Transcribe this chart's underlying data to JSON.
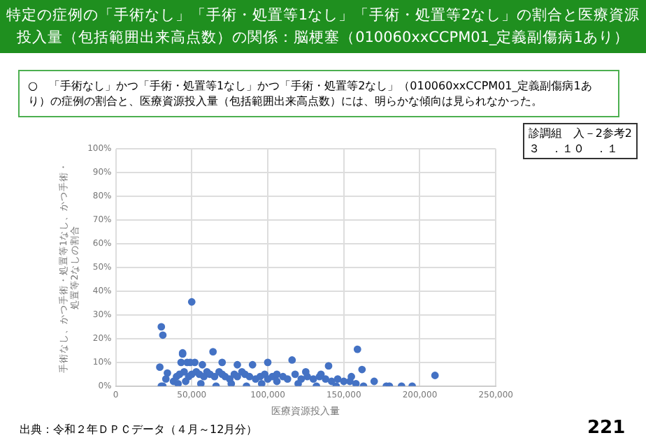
{
  "chart_data": {
    "type": "scatter",
    "title": "特定の症例の「手術なし」「手術・処置等1なし」「手術・処置等2なし」の割合と医療資源投入量（包括範囲出来高点数）の関係：脳梗塞（010060xxCCPM01_定義副傷病1あり）",
    "subtitle": "○　「手術なし」かつ「手術・処置等1なし」かつ「手術・処置等2なし」（010060xxCCPM01_定義副傷病1あり）の症例の割合と、医療資源投入量（包括範囲出来高点数）には、明らかな傾向は見られなかった。",
    "annotations": [
      "診調組　入－2参考2\n３　．１０　．１",
      "出典：令和２年ＤＰＣデータ（４月～12月分）",
      "221"
    ],
    "xlabel": "医療資源投入量",
    "ylabel": "手術なし、かつ手術・処置等1なし、かつ手術・処置等2なしの割合",
    "series": [
      {
        "color": "#4472c4",
        "x": [
          30000,
          31000,
          29000,
          30000,
          31000,
          33000,
          34000,
          50000,
          44000,
          44000,
          43000,
          47000,
          49000,
          52000,
          64000,
          116000,
          90000,
          159000,
          162000,
          210000,
          170000,
          178000,
          180000,
          188000,
          195000,
          140000,
          163000,
          155000,
          38000,
          40000,
          42000,
          45000,
          48000,
          50000,
          53000,
          55000,
          58000,
          60000,
          62000,
          65000,
          68000,
          70000,
          72000,
          75000,
          78000,
          80000,
          83000,
          85000,
          88000,
          92000,
          95000,
          98000,
          100000,
          103000,
          106000,
          110000,
          113000,
          118000,
          122000,
          126000,
          130000,
          134000,
          138000,
          142000,
          146000,
          150000,
          154000,
          158000,
          41000,
          46000,
          56000,
          66000,
          76000,
          86000,
          96000,
          106000,
          120000,
          132000,
          145000,
          70000,
          80000,
          57000,
          100000,
          125000,
          135000
        ],
        "values": [
          25,
          21.5,
          8,
          0,
          0,
          3,
          5.5,
          35.5,
          14,
          13.5,
          10,
          10,
          10,
          10,
          14.5,
          11,
          9,
          15.5,
          7,
          4.5,
          2,
          0,
          0,
          0,
          0,
          8.5,
          0,
          4,
          2,
          4,
          5,
          6,
          4,
          5,
          6,
          5,
          4,
          6,
          5,
          4,
          6,
          5,
          4,
          3,
          5,
          4,
          6,
          5,
          4,
          3,
          4,
          5,
          3,
          4,
          5,
          4,
          3,
          5,
          3,
          4,
          3,
          4,
          3,
          2,
          3,
          2,
          2,
          1,
          1,
          2,
          1,
          0,
          1,
          0,
          1,
          2,
          1,
          0,
          0,
          10,
          9,
          9,
          10,
          6,
          5
        ]
      }
    ],
    "xlim": [
      0,
      250000
    ],
    "xticks": [
      0,
      {
        "value": 50000,
        "label": "50,000"
      },
      {
        "value": 100000,
        "label": "100,000"
      },
      {
        "value": 150000,
        "label": "150,000"
      },
      {
        "value": 200000,
        "label": "200,000"
      },
      {
        "value": 250000,
        "label": "250,000"
      }
    ],
    "ylim": [
      0,
      100
    ],
    "yticks": [
      {
        "value": 0,
        "label": "0%"
      },
      {
        "value": 10,
        "label": "10%"
      },
      {
        "value": 20,
        "label": "20%"
      },
      {
        "value": 30,
        "label": "30%"
      },
      {
        "value": 40,
        "label": "40%"
      },
      {
        "value": 50,
        "label": "50%"
      },
      {
        "value": 60,
        "label": "60%"
      },
      {
        "value": 70,
        "label": "70%"
      },
      {
        "value": 80,
        "label": "80%"
      },
      {
        "value": 90,
        "label": "90%"
      },
      {
        "value": 100,
        "label": "100%"
      }
    ],
    "grid": true,
    "legend": false,
    "marker": "circle"
  }
}
